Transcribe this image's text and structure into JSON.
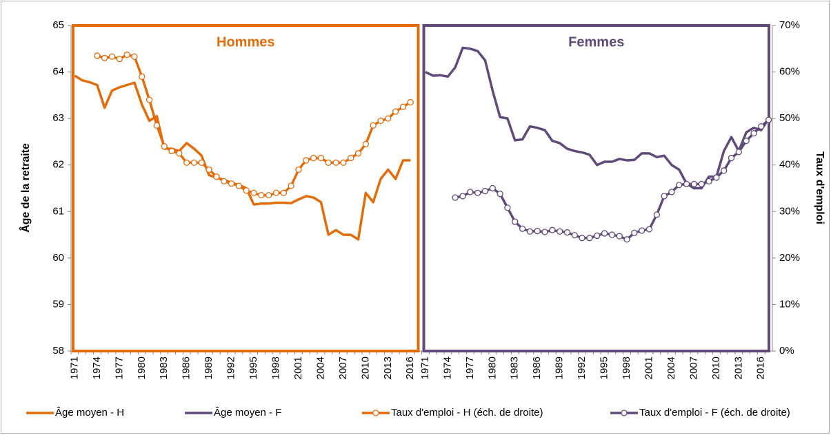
{
  "chart_data": {
    "type": "line",
    "y_label": "Âge de la retraite",
    "y2_label": "Taux d'emploi",
    "panels": [
      {
        "label": "Hommes",
        "color": "#E36C0A"
      },
      {
        "label": "Femmes",
        "color": "#604A7B"
      }
    ],
    "categories": [
      "1971",
      null,
      null,
      "1974",
      null,
      null,
      "1977",
      null,
      null,
      "1980",
      null,
      null,
      "1983",
      null,
      null,
      "1986",
      null,
      null,
      "1989",
      null,
      null,
      "1992",
      null,
      null,
      "1995",
      null,
      null,
      "1998",
      null,
      null,
      "2001",
      null,
      null,
      "2004",
      null,
      null,
      "2007",
      null,
      null,
      "2010",
      null,
      null,
      "2013",
      null,
      null,
      "2016",
      null,
      "1971",
      null,
      null,
      "1974",
      null,
      null,
      "1977",
      null,
      null,
      "1980",
      null,
      null,
      "1983",
      null,
      null,
      "1986",
      null,
      null,
      "1989",
      null,
      null,
      "1992",
      null,
      null,
      "1995",
      null,
      null,
      "1998",
      null,
      null,
      "2001",
      null,
      null,
      "2004",
      null,
      null,
      "2007",
      null,
      null,
      "2010",
      null,
      null,
      "2013",
      null,
      null,
      "2016",
      null
    ],
    "ylim": [
      58,
      65
    ],
    "yticks": [
      58,
      59,
      60,
      61,
      62,
      63,
      64,
      65
    ],
    "y2lim": [
      0,
      70
    ],
    "y2ticks": [
      {
        "value": 0,
        "label": "0%"
      },
      {
        "value": 10,
        "label": "10%"
      },
      {
        "value": 20,
        "label": "20%"
      },
      {
        "value": 30,
        "label": "30%"
      },
      {
        "value": 40,
        "label": "40%"
      },
      {
        "value": 50,
        "label": "50%"
      },
      {
        "value": 60,
        "label": "60%"
      },
      {
        "value": 70,
        "label": "70%"
      }
    ],
    "series": [
      {
        "name": "Âge moyen - H",
        "color": "#E36C0A",
        "markers": false,
        "values": [
          63.92,
          63.82,
          63.78,
          63.72,
          63.23,
          63.6,
          63.67,
          63.72,
          63.77,
          63.3,
          62.95,
          63.05,
          62.35,
          62.35,
          62.3,
          62.47,
          62.35,
          62.2,
          61.78,
          61.73,
          61.68,
          61.62,
          61.57,
          61.5,
          61.15,
          61.17,
          61.17,
          61.19,
          61.19,
          61.18,
          61.26,
          61.33,
          61.3,
          61.2,
          60.5,
          60.6,
          60.5,
          60.5,
          60.4,
          61.4,
          61.2,
          61.7,
          61.9,
          61.7,
          62.1,
          62.1,
          null,
          null,
          null,
          null,
          null,
          null,
          null,
          null,
          null,
          null,
          null,
          null,
          null,
          null,
          null,
          null,
          null,
          null,
          null,
          null,
          null,
          null,
          null,
          null,
          null,
          null,
          null,
          null,
          null,
          null,
          null,
          null,
          null,
          null,
          null,
          null,
          null,
          null,
          null,
          null,
          null,
          null,
          null,
          null,
          null,
          null,
          null,
          null
        ]
      },
      {
        "name": "Âge moyen - F",
        "color": "#604A7B",
        "markers": false,
        "values": [
          null,
          null,
          null,
          null,
          null,
          null,
          null,
          null,
          null,
          null,
          null,
          null,
          null,
          null,
          null,
          null,
          null,
          null,
          null,
          null,
          null,
          null,
          null,
          null,
          null,
          null,
          null,
          null,
          null,
          null,
          null,
          null,
          null,
          null,
          null,
          null,
          null,
          null,
          null,
          null,
          null,
          null,
          null,
          null,
          null,
          null,
          null,
          64.0,
          63.92,
          63.93,
          63.9,
          64.1,
          64.52,
          64.5,
          64.45,
          64.25,
          63.6,
          63.03,
          63.0,
          62.53,
          62.55,
          62.83,
          62.8,
          62.75,
          62.52,
          62.47,
          62.35,
          62.3,
          62.27,
          62.22,
          62.0,
          62.07,
          62.07,
          62.13,
          62.1,
          62.11,
          62.25,
          62.25,
          62.17,
          62.2,
          62.0,
          61.9,
          61.6,
          61.5,
          61.5,
          61.75,
          61.75,
          62.3,
          62.6,
          62.3,
          62.7,
          62.8,
          62.75,
          63.0
        ]
      },
      {
        "name": "Taux d'emploi - H (éch. de droite)",
        "color": "#E36C0A",
        "markers": true,
        "axis": "y2",
        "values": [
          null,
          null,
          null,
          63.5,
          63.0,
          63.3,
          62.8,
          63.7,
          63.3,
          59,
          54,
          48.5,
          44,
          43,
          42.5,
          40.5,
          40.5,
          40.5,
          39,
          37.5,
          36.5,
          36,
          35.5,
          34.5,
          34,
          33.5,
          33.5,
          34,
          34,
          35.5,
          39,
          41,
          41.5,
          41.5,
          40.5,
          40.5,
          40.5,
          41.5,
          42.5,
          44.5,
          48.5,
          49.5,
          50,
          51.5,
          52.5,
          53.5,
          null,
          null,
          null,
          null,
          null,
          null,
          null,
          null,
          null,
          null,
          null,
          null,
          null,
          null,
          null,
          null,
          null,
          null,
          null,
          null,
          null,
          null,
          null,
          null,
          null,
          null,
          null,
          null,
          null,
          null,
          null,
          null,
          null,
          null,
          null,
          null,
          null,
          null,
          null,
          null,
          null,
          null,
          null,
          null,
          null,
          null,
          null,
          null
        ]
      },
      {
        "name": "Taux d'emploi - F (éch. de droite)",
        "color": "#604A7B",
        "markers": true,
        "axis": "y2",
        "values": [
          null,
          null,
          null,
          null,
          null,
          null,
          null,
          null,
          null,
          null,
          null,
          null,
          null,
          null,
          null,
          null,
          null,
          null,
          null,
          null,
          null,
          null,
          null,
          null,
          null,
          null,
          null,
          null,
          null,
          null,
          null,
          null,
          null,
          null,
          null,
          null,
          null,
          null,
          null,
          null,
          null,
          null,
          null,
          null,
          null,
          null,
          null,
          null,
          null,
          null,
          null,
          33,
          33.3,
          34.2,
          34,
          34.4,
          35,
          33.8,
          30.8,
          27.8,
          26.3,
          25.7,
          25.8,
          25.6,
          26,
          25.7,
          25.5,
          24.9,
          24.3,
          24.3,
          24.8,
          25.3,
          25,
          24.7,
          24,
          25.4,
          25.9,
          26.2,
          29.3,
          33.3,
          34.2,
          35.7,
          35.9,
          35.9,
          35.9,
          36.5,
          37.3,
          38.8,
          41.5,
          42.8,
          45.2,
          46.8,
          48.3,
          49.7
        ]
      }
    ]
  }
}
